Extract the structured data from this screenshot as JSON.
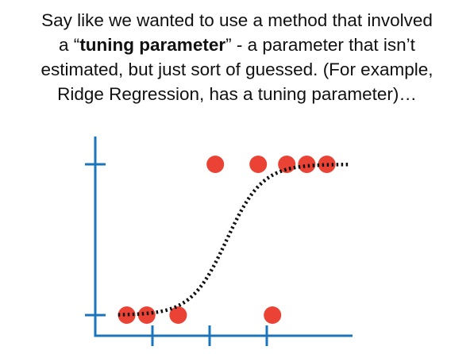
{
  "caption": {
    "line1": "Say like we wanted to use a method that involved",
    "line2_pre": "a “",
    "line2_bold": "tuning parameter",
    "line2_post": "” - a parameter that isn’t",
    "line3": "estimated, but just sort of guessed. (For example,",
    "line4": "Ridge Regression, has a tuning parameter)…"
  },
  "colors": {
    "axis": "#1b75bc",
    "point": "#ea4335",
    "curve": "#111111"
  },
  "chart_data": {
    "type": "scatter",
    "y_levels": [
      "low",
      "high"
    ],
    "points": [
      {
        "x": 0.55,
        "y": "low"
      },
      {
        "x": 0.9,
        "y": "low"
      },
      {
        "x": 1.45,
        "y": "low"
      },
      {
        "x": 2.1,
        "y": "high"
      },
      {
        "x": 2.85,
        "y": "high"
      },
      {
        "x": 3.35,
        "y": "high"
      },
      {
        "x": 3.7,
        "y": "high"
      },
      {
        "x": 4.05,
        "y": "high"
      },
      {
        "x": 3.1,
        "y": "low"
      }
    ],
    "x_ticks": [
      1,
      2,
      3
    ],
    "xlim": [
      0,
      4.5
    ],
    "curve": {
      "type": "logistic-dotted",
      "midpoint": 2.3,
      "steepness": 3.2,
      "x_start": 0.4,
      "x_end": 4.45
    }
  }
}
